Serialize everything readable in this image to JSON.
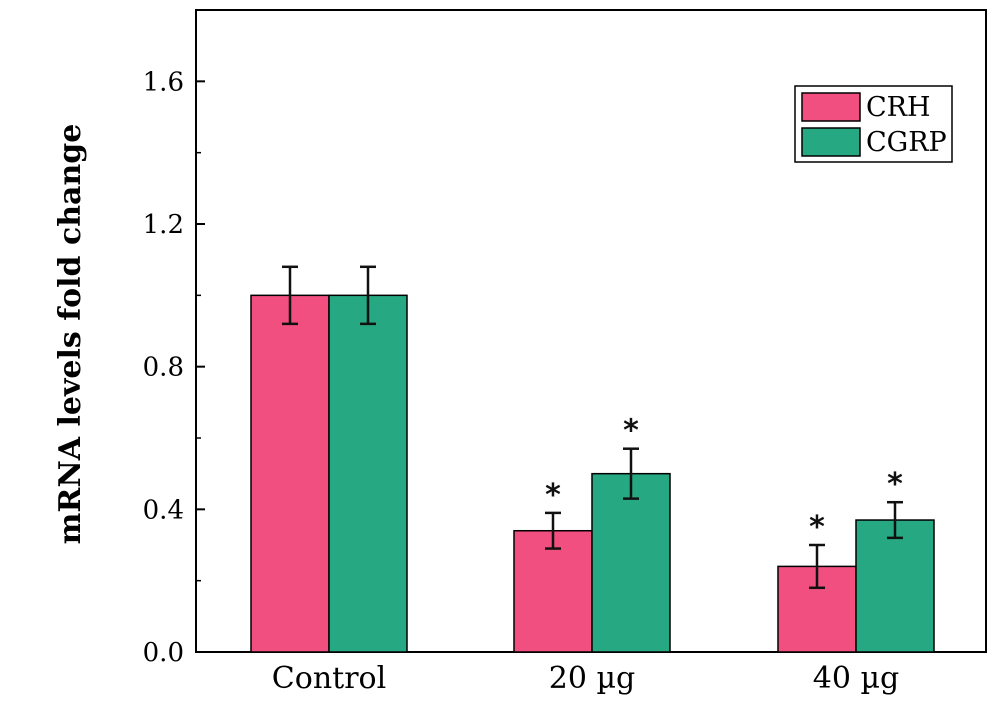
{
  "chart_data": {
    "type": "bar",
    "title": "",
    "xlabel": "",
    "ylabel": "mRNA levels fold change",
    "categories": [
      "Control",
      "20 µg",
      "40 µg"
    ],
    "ylim": [
      0,
      1.8
    ],
    "yticks": [
      "0.0",
      "0.4",
      "0.8",
      "1.2",
      "1.6"
    ],
    "grid": false,
    "legend_position": "top-right",
    "series": [
      {
        "name": "CRH",
        "color": "#f04f80",
        "values": [
          1.0,
          0.34,
          0.24
        ],
        "errors": [
          0.08,
          0.05,
          0.06
        ],
        "significance": [
          "",
          "*",
          "*"
        ]
      },
      {
        "name": "CGRP",
        "color": "#26a982",
        "values": [
          1.0,
          0.5,
          0.37
        ],
        "errors": [
          0.08,
          0.07,
          0.05
        ],
        "significance": [
          "",
          "*",
          "*"
        ]
      }
    ]
  }
}
